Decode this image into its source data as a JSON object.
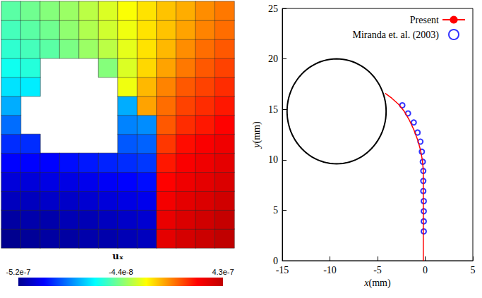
{
  "chart_data": [
    {
      "type": "heatmap",
      "title": "uₓ",
      "tick_labels": false,
      "x": [
        -16,
        -14,
        -12,
        -10,
        -8,
        -6,
        -4,
        -2,
        0,
        2,
        4,
        6
      ],
      "y": [
        1,
        3,
        5,
        7,
        9,
        11,
        13,
        15,
        17,
        19,
        21,
        23,
        25
      ],
      "values": [
        [
          -5.2e-07,
          -5.1e-07,
          -5e-07,
          -5e-07,
          -4.9e-07,
          -4.9e-07,
          -4.8e-07,
          -4.7e-07,
          3.6e-07,
          3.9e-07,
          4.1e-07,
          4.3e-07
        ],
        [
          -5e-07,
          -4.9e-07,
          -4.9e-07,
          -4.8e-07,
          -4.8e-07,
          -4.7e-07,
          -4.6e-07,
          -4.5e-07,
          3.5e-07,
          3.8e-07,
          4e-07,
          4.2e-07
        ],
        [
          -4.7e-07,
          -4.7e-07,
          -4.6e-07,
          -4.6e-07,
          -4.5e-07,
          -4.4e-07,
          -4.3e-07,
          -4.2e-07,
          3.3e-07,
          3.6e-07,
          3.8e-07,
          4e-07
        ],
        [
          -4.4e-07,
          -4.4e-07,
          -4.3e-07,
          -4.3e-07,
          -4.2e-07,
          -4.1e-07,
          -4e-07,
          -3.9e-07,
          3.1e-07,
          3.4e-07,
          3.6e-07,
          3.8e-07
        ],
        [
          -4e-07,
          -4e-07,
          -4e-07,
          -3.9e-07,
          -3.8e-07,
          -3.7e-07,
          -3.6e-07,
          -3.5e-07,
          2.9e-07,
          3.2e-07,
          3.4e-07,
          3.6e-07
        ],
        [
          -3.6e-07,
          -3.6e-07,
          null,
          null,
          null,
          null,
          -3.2e-07,
          -3.1e-07,
          2.6e-07,
          3e-07,
          3.2e-07,
          3.4e-07
        ],
        [
          -3e-07,
          null,
          null,
          null,
          null,
          null,
          -2.8e-07,
          -2.7e-07,
          2.3e-07,
          2.7e-07,
          2.9e-07,
          3.1e-07
        ],
        [
          -2.4e-07,
          null,
          null,
          null,
          null,
          null,
          -2.4e-07,
          1.6e-07,
          2.1e-07,
          2.5e-07,
          2.7e-07,
          2.9e-07
        ],
        [
          -1.9e-07,
          -1.8e-07,
          null,
          null,
          null,
          null,
          6e-08,
          1.4e-07,
          1.9e-07,
          2.3e-07,
          2.5e-07,
          2.7e-07
        ],
        [
          -1.5e-07,
          -1.3e-07,
          null,
          null,
          null,
          -4e-08,
          4e-08,
          1.1e-07,
          1.6e-07,
          2e-07,
          2.3e-07,
          2.5e-07
        ],
        [
          -1.2e-07,
          -1e-07,
          -8e-08,
          -5e-08,
          -2e-08,
          1e-08,
          5e-08,
          1e-07,
          1.4e-07,
          1.8e-07,
          2.1e-07,
          2.3e-07
        ],
        [
          -1e-07,
          -8e-08,
          -6e-08,
          -3e-08,
          0.0,
          3e-08,
          6e-08,
          1e-07,
          1.3e-07,
          1.6e-07,
          1.9e-07,
          2.1e-07
        ],
        [
          -8e-08,
          -6e-08,
          -4e-08,
          -2e-08,
          1e-08,
          4e-08,
          7e-08,
          1e-07,
          1.3e-07,
          1.5e-07,
          1.8e-07,
          2e-07
        ]
      ],
      "colorbar": {
        "range": [
          -5.2e-07,
          4.3e-07
        ],
        "ticks": [
          {
            "value": -5.2e-07,
            "label": "-5.2e-7"
          },
          {
            "value": -4.4e-08,
            "label": "-4.4e-8"
          },
          {
            "value": 4.3e-07,
            "label": "4.3e-7"
          }
        ]
      }
    },
    {
      "type": "line",
      "x_label": "x(mm)",
      "y_label": "y(mm)",
      "xlim": [
        -15,
        5
      ],
      "xticks": [
        -15,
        -10,
        -5,
        0,
        5
      ],
      "ylim": [
        0,
        25
      ],
      "yticks": [
        0,
        5,
        10,
        15,
        20,
        25
      ],
      "legend": "upper right",
      "grid": false,
      "circle": {
        "center": [
          -9.3,
          14.8
        ],
        "radius": 5.2
      },
      "series": [
        {
          "name": "Present",
          "type": "line",
          "color": "#ff0000",
          "line_style": "solid",
          "x": [
            -4.2,
            -3.5,
            -2.8,
            -2.2,
            -1.7,
            -1.2,
            -0.8,
            -0.5,
            -0.3,
            -0.2,
            -0.2,
            -0.2,
            -0.2,
            -0.2
          ],
          "values": [
            16.6,
            16.1,
            15.5,
            14.8,
            14.0,
            13.0,
            12.0,
            11.0,
            10.0,
            9.0,
            7.0,
            5.0,
            3.0,
            0.0
          ]
        },
        {
          "name": "Miranda et. al. (2003)",
          "type": "scatter",
          "color": "#0000ff",
          "marker": "open circle",
          "x": [
            -2.4,
            -1.8,
            -1.2,
            -0.8,
            -0.5,
            -0.35,
            -0.25,
            -0.2,
            -0.2,
            -0.2,
            -0.15,
            -0.15,
            -0.15,
            -0.15
          ],
          "values": [
            15.4,
            14.6,
            13.7,
            12.7,
            11.8,
            10.8,
            9.8,
            8.9,
            7.9,
            6.9,
            5.9,
            4.9,
            3.9,
            2.9
          ]
        }
      ]
    }
  ]
}
